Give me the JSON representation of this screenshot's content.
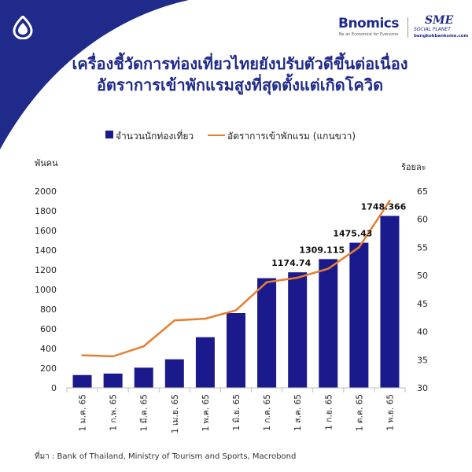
{
  "header": {
    "brand_name": "Bnomics",
    "brand_tagline": "Be an Economist for Everyone",
    "partner_name": "SME",
    "partner_sub": "SOCIAL PLANET",
    "partner_url": "bangkokbanksme.com"
  },
  "title_line1": "เครื่องชี้วัดการท่องเที่ยวไทยยังปรับตัวดีขึ้นต่อเนื่อง",
  "title_line2": "อัตราการเข้าพักแรมสูงที่สุดตั้งแต่เกิดโควิด",
  "source": "ที่มา : Bank of Thailand, Ministry of Tourism and Sports, Macrobond",
  "colors": {
    "bar": "#1a1a8c",
    "line": "#e87d2f",
    "title": "#1f2a8a"
  },
  "chart_data": {
    "type": "bar",
    "categories": [
      "1 ม.ค. 65",
      "1 ก.พ. 65",
      "1 มี.ค. 65",
      "1 เม.ย. 65",
      "1 พ.ค. 65",
      "1 มิ.ย. 65",
      "1 ก.ค. 65",
      "1 ส.ค. 65",
      "1 ก.ย. 65",
      "1 ต.ค. 65",
      "1 พ.ย. 65"
    ],
    "series": [
      {
        "name": "จำนวนนักท่องเที่ยว",
        "type": "bar",
        "axis": "left",
        "values": [
          130,
          145,
          205,
          290,
          515,
          760,
          1115,
          1174.74,
          1309.115,
          1475.43,
          1748.366
        ],
        "data_labels": [
          "",
          "",
          "",
          "",
          "",
          "",
          "",
          "1174.74",
          "1309.115",
          "1475.43",
          "1748.366"
        ]
      },
      {
        "name": "อัตราการเข้าพักแรม (แกนขวา)",
        "type": "line",
        "axis": "right",
        "values": [
          35.8,
          35.6,
          37.4,
          42.0,
          42.3,
          43.8,
          48.8,
          49.6,
          51.2,
          55.0,
          63.3
        ]
      }
    ],
    "ylabel_left": "พันคน",
    "ylabel_right": "ร้อยละ",
    "ylim_left": [
      0,
      2000
    ],
    "yticks_left": [
      0,
      200,
      400,
      600,
      800,
      1000,
      1200,
      1400,
      1600,
      1800,
      2000
    ],
    "ylim_right": [
      30,
      65
    ],
    "yticks_right": [
      30,
      35,
      40,
      45,
      50,
      55,
      60,
      65
    ],
    "grid": false,
    "legend_position": "top"
  }
}
